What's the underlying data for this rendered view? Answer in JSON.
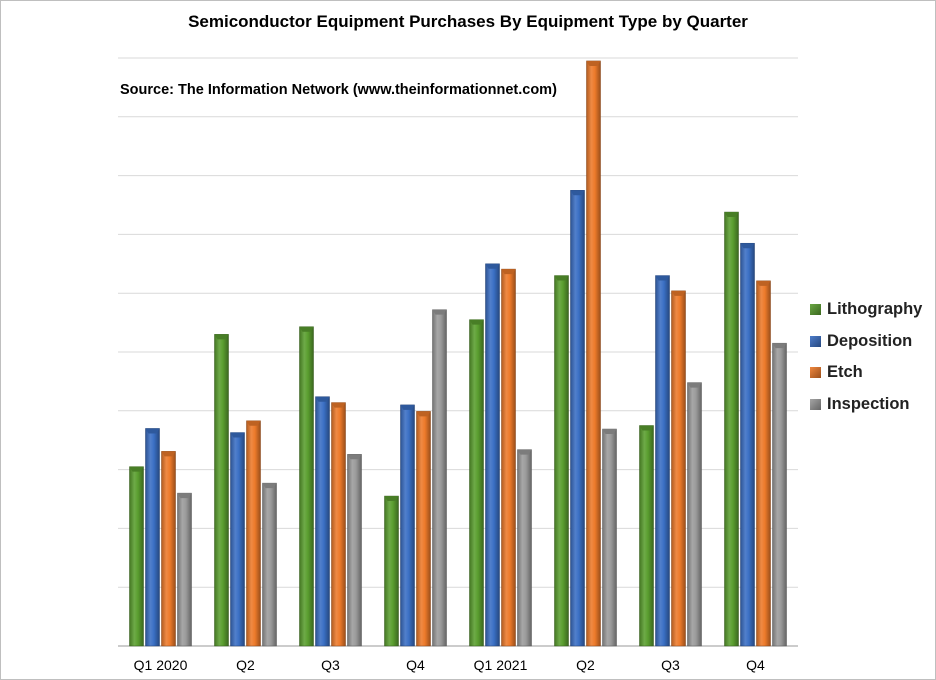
{
  "chart_data": {
    "type": "bar",
    "title": "Semiconductor Equipment Purchases By Equipment Type by Quarter",
    "subtitle": "Source: The Information Network (www.theinformationnet.com)",
    "categories": [
      "Q1  2020",
      "Q2",
      "Q3",
      "Q4",
      "Q1   2021",
      "Q2",
      "Q3",
      "Q4"
    ],
    "series": [
      {
        "name": "Lithography",
        "color": "#5a9e2f",
        "values": [
          3.05,
          5.3,
          5.43,
          2.55,
          5.55,
          6.3,
          3.75,
          7.38
        ]
      },
      {
        "name": "Deposition",
        "color": "#3a6fc4",
        "values": [
          3.7,
          3.63,
          4.24,
          4.1,
          6.5,
          7.75,
          6.3,
          6.85
        ]
      },
      {
        "name": "Etch",
        "color": "#ed7a2a",
        "values": [
          3.31,
          3.83,
          4.14,
          3.99,
          6.41,
          9.95,
          6.04,
          6.21
        ]
      },
      {
        "name": "Inspection",
        "color": "#9b9b9b",
        "values": [
          2.6,
          2.77,
          3.26,
          5.72,
          3.34,
          3.69,
          4.48,
          5.15
        ]
      }
    ],
    "ylim": [
      0,
      10
    ],
    "grid": true,
    "legend_position": "right"
  }
}
